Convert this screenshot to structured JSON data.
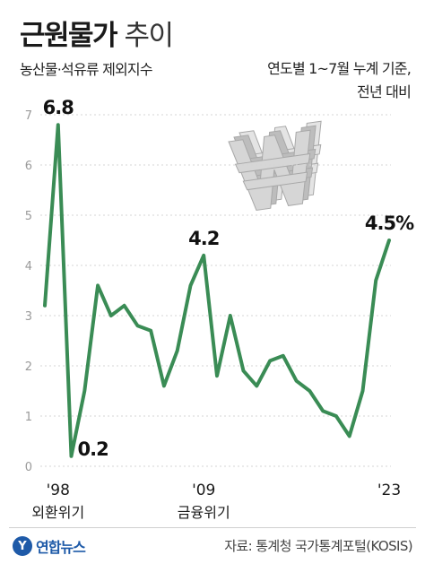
{
  "header": {
    "title_bold": "근원물가",
    "title_light": "추이",
    "subtitle": "농산물·석유류 제외지수",
    "note_line1": "연도별 1~7월 누계 기준,",
    "note_line2": "전년 대비"
  },
  "footer": {
    "logo_mark": "Y",
    "logo_text": "연합뉴스",
    "source": "자료: 통계청 국가통계포털(KOSIS)"
  },
  "colors": {
    "line": "#3a8c55",
    "grid": "#d4d4d4",
    "axis_text": "#9a9a9a",
    "emblem": "#cfcfcf"
  },
  "chart_data": {
    "type": "line",
    "x": [
      1997,
      1998,
      1999,
      2000,
      2001,
      2002,
      2003,
      2004,
      2005,
      2006,
      2007,
      2008,
      2009,
      2010,
      2011,
      2012,
      2013,
      2014,
      2015,
      2016,
      2017,
      2018,
      2019,
      2020,
      2021,
      2022,
      2023
    ],
    "values": [
      3.2,
      6.8,
      0.2,
      1.5,
      3.6,
      3.0,
      3.2,
      2.8,
      2.7,
      1.6,
      2.3,
      3.6,
      4.2,
      1.8,
      3.0,
      1.9,
      1.6,
      2.1,
      2.2,
      1.7,
      1.5,
      1.1,
      1.0,
      0.6,
      1.5,
      3.7,
      4.5
    ],
    "ylim": [
      0,
      7
    ],
    "yticks": [
      "0",
      "1",
      "2",
      "3",
      "4",
      "5",
      "6",
      "7"
    ],
    "xticks": [
      {
        "x": 1998,
        "label": "'98",
        "sub": "외환위기"
      },
      {
        "x": 2009,
        "label": "'09",
        "sub": "금융위기"
      },
      {
        "x": 2023,
        "label": "'23",
        "sub": ""
      }
    ],
    "annotations": [
      {
        "x": 1998,
        "text": "6.8",
        "pos": "above"
      },
      {
        "x": 1999,
        "text": "0.2",
        "pos": "right"
      },
      {
        "x": 2009,
        "text": "4.2",
        "pos": "above"
      },
      {
        "x": 2023,
        "text": "4.5%",
        "pos": "above"
      }
    ],
    "grid": true
  }
}
